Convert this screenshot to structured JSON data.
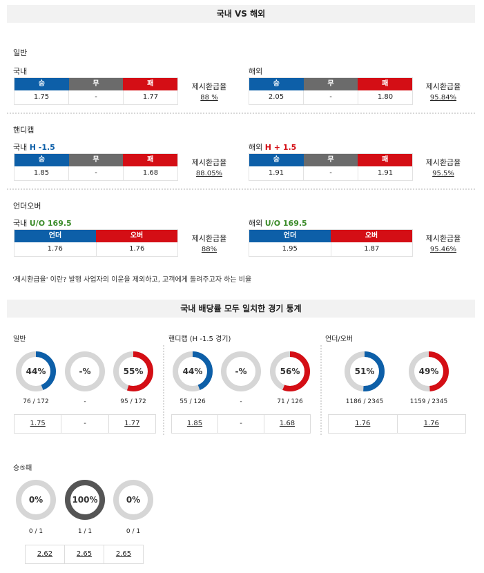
{
  "top_header": "국내 VS 해외",
  "colors": {
    "win": "#0d5fa8",
    "draw": "#6b6b6b",
    "lose": "#d40e15",
    "track": "#d6d6d6",
    "dark": "#555555",
    "red_text": "#d40e15",
    "green_text": "#3c8c2a",
    "blue_text": "#0d5fa8"
  },
  "rate_label": "제시환급율",
  "general": {
    "title": "일반",
    "domestic": {
      "label": "국내",
      "heads": [
        "승",
        "무",
        "패"
      ],
      "vals": [
        "1.75",
        "-",
        "1.77"
      ],
      "rate": "88 %"
    },
    "overseas": {
      "label": "해외",
      "heads": [
        "승",
        "무",
        "패"
      ],
      "vals": [
        "2.05",
        "-",
        "1.80"
      ],
      "rate": "95.84%"
    }
  },
  "handicap": {
    "title": "핸디캡",
    "domestic": {
      "label": "국내",
      "hval": "H -1.5",
      "heads": [
        "승",
        "무",
        "패"
      ],
      "vals": [
        "1.85",
        "-",
        "1.68"
      ],
      "rate": "88.05%"
    },
    "overseas": {
      "label": "해외",
      "hval": "H + 1.5",
      "heads": [
        "승",
        "무",
        "패"
      ],
      "vals": [
        "1.91",
        "-",
        "1.91"
      ],
      "rate": "95.5%"
    }
  },
  "underover": {
    "title": "언더오버",
    "domestic": {
      "label": "국내",
      "hval": "U/O 169.5",
      "heads": [
        "언더",
        "오버"
      ],
      "vals": [
        "1.76",
        "1.76"
      ],
      "rate": "88%"
    },
    "overseas": {
      "label": "해외",
      "hval": "U/O 169.5",
      "heads": [
        "언더",
        "오버"
      ],
      "vals": [
        "1.95",
        "1.87"
      ],
      "rate": "95.46%"
    }
  },
  "note": "'제시환급율' 이란? 발행 사업자의 이윤을 제외하고, 고객에게 돌려주고자 하는 비율",
  "stats_header": "국내 배당률 모두 일치한 경기 통계",
  "stats": {
    "general": {
      "title": "일반",
      "donuts": [
        {
          "text": "44%",
          "fraction": 0.44,
          "color": "blue",
          "count": "76 / 172"
        },
        {
          "text": "-%",
          "fraction": 0,
          "color": "none",
          "count": "-"
        },
        {
          "text": "55%",
          "fraction": 0.55,
          "color": "red",
          "count": "95 / 172"
        }
      ],
      "odds": [
        "1.75",
        "-",
        "1.77"
      ]
    },
    "handicap": {
      "title": "핸디캡 (H -1.5 경기)",
      "donuts": [
        {
          "text": "44%",
          "fraction": 0.44,
          "color": "blue",
          "count": "55 / 126"
        },
        {
          "text": "-%",
          "fraction": 0,
          "color": "none",
          "count": "-"
        },
        {
          "text": "56%",
          "fraction": 0.56,
          "color": "red",
          "count": "71 / 126"
        }
      ],
      "odds": [
        "1.85",
        "-",
        "1.68"
      ]
    },
    "underover": {
      "title": "언더/오버",
      "donuts": [
        {
          "text": "51%",
          "fraction": 0.51,
          "color": "blue",
          "count": "1186 / 2345"
        },
        {
          "text": "49%",
          "fraction": 0.49,
          "color": "red",
          "count": "1159 / 2345"
        }
      ],
      "odds": [
        "1.76",
        "1.76"
      ]
    },
    "win5": {
      "title": "승⑤패",
      "donuts": [
        {
          "text": "0%",
          "fraction": 0,
          "color": "none",
          "count": "0 / 1"
        },
        {
          "text": "100%",
          "fraction": 1,
          "color": "dark",
          "count": "1 / 1"
        },
        {
          "text": "0%",
          "fraction": 0,
          "color": "none",
          "count": "0 / 1"
        }
      ],
      "odds": [
        "2.62",
        "2.65",
        "2.65"
      ]
    }
  }
}
